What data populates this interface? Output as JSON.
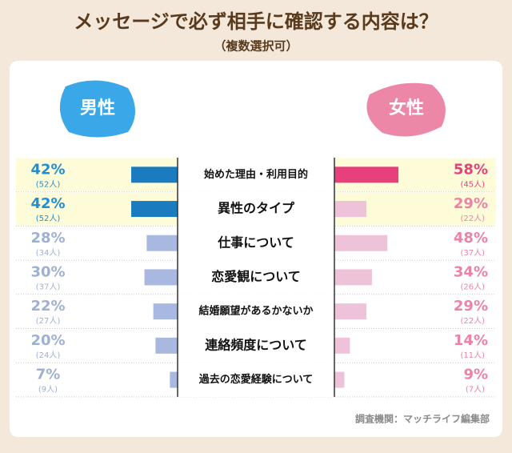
{
  "chart_data": {
    "type": "butterfly",
    "title": "メッセージで必ず相手に確認する内容は？",
    "subtitle": "（複数選択可）",
    "categories": [
      "始めた理由・利用目的",
      "異性のタイプ",
      "仕事について",
      "恋愛観について",
      "結婚願望があるかないか",
      "連絡頻度について",
      "過去の恋愛経験について"
    ],
    "series": [
      {
        "name": "男性",
        "color": "#1a7bbf",
        "muted_color": "#a9b8e0",
        "text_color": "#1f8fd0",
        "muted_text_color": "#9fb0d0",
        "badge_color": "#3aa8e8",
        "values": [
          42,
          42,
          28,
          30,
          22,
          20,
          7
        ],
        "value_labels": [
          "42%",
          "42%",
          "28%",
          "30%",
          "22%",
          "20%",
          "7%"
        ],
        "counts": [
          52,
          52,
          34,
          37,
          27,
          24,
          9
        ],
        "count_labels": [
          "(52人)",
          "(52人)",
          "(34人)",
          "(37人)",
          "(27人)",
          "(24人)",
          "(9人)"
        ]
      },
      {
        "name": "女性",
        "color": "#e8407c",
        "muted_color": "#eec3da",
        "text_color": "#e8407c",
        "muted_text_color": "#ec82a8",
        "badge_color": "#ec87a8",
        "values": [
          58,
          29,
          48,
          34,
          29,
          14,
          9
        ],
        "value_labels": [
          "58%",
          "29%",
          "48%",
          "34%",
          "29%",
          "14%",
          "9%"
        ],
        "counts": [
          45,
          22,
          37,
          26,
          22,
          11,
          7
        ],
        "count_labels": [
          "(45人)",
          "(22人)",
          "(37人)",
          "(26人)",
          "(22人)",
          "(11人)",
          "(7人)"
        ]
      }
    ],
    "highlight_background": "#fdfbd8",
    "source": "調査機関：マッチライフ編集部"
  }
}
